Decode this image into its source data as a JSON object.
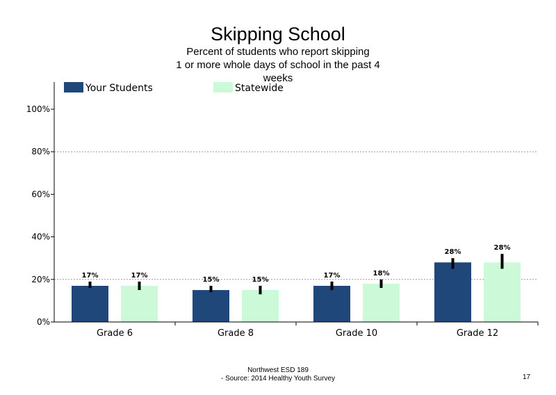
{
  "title": "Skipping School",
  "subtitle_lines": [
    "Percent of students who report skipping",
    "1 or more whole days of school in the past 4",
    "weeks"
  ],
  "footer": {
    "line1": "Northwest ESD  189",
    "line2": "- Source: 2014 Healthy  Youth Survey",
    "page": "17"
  },
  "colors": {
    "your_students": "#1f477a",
    "statewide": "#ccfad8",
    "error_bar": "#000000",
    "gridline": "#9a9a9a"
  },
  "chart_data": {
    "type": "bar",
    "categories": [
      "Grade 6",
      "Grade 8",
      "Grade 10",
      "Grade 12"
    ],
    "series": [
      {
        "name": "Your Students",
        "values": [
          17,
          15,
          17,
          28
        ],
        "labels": [
          "17%",
          "15%",
          "17%",
          "28%"
        ],
        "error": [
          [
            16,
            19
          ],
          [
            14,
            17
          ],
          [
            15,
            19
          ],
          [
            25,
            30
          ]
        ]
      },
      {
        "name": "Statewide",
        "values": [
          17,
          15,
          18,
          28
        ],
        "labels": [
          "17%",
          "15%",
          "18%",
          "28%"
        ],
        "error": [
          [
            15,
            19
          ],
          [
            13,
            17
          ],
          [
            16,
            20
          ],
          [
            25,
            32
          ]
        ]
      }
    ],
    "y_ticks": [
      0,
      20,
      40,
      60,
      80,
      100
    ],
    "y_tick_labels": [
      "0%",
      "20%",
      "40%",
      "60%",
      "80%",
      "100%"
    ],
    "ylim": [
      0,
      100
    ],
    "gridlines": [
      20,
      80
    ],
    "legend_position": "top"
  }
}
